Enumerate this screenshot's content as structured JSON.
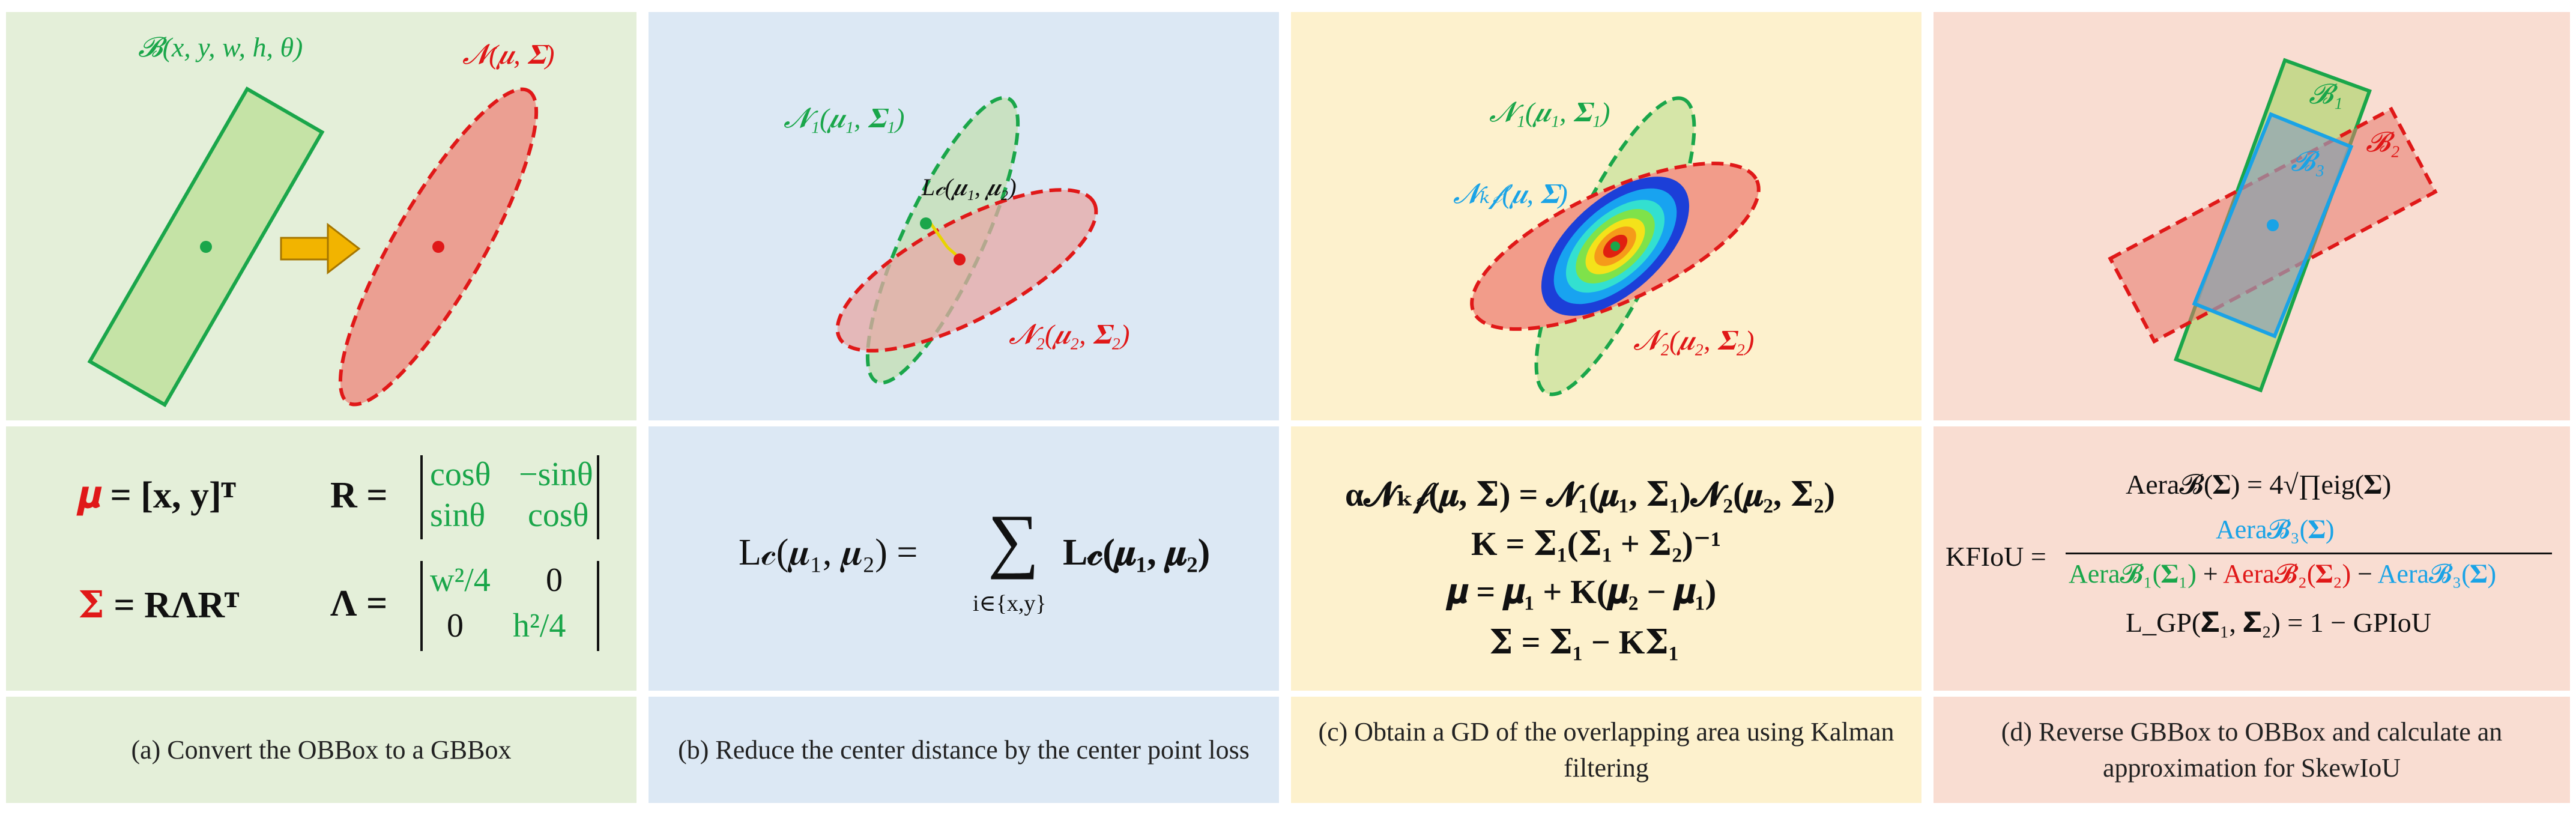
{
  "colors": {
    "green": "#1aa64a",
    "red": "#e01818",
    "cyan": "#1aa3e6",
    "panel_a": "#e4efd9",
    "panel_b": "#dce8f4",
    "panel_c": "#fdf1cd",
    "panel_d": "#f9ddd2"
  },
  "panel_a": {
    "label_obb": "𝓑(x, y, w, h, θ)",
    "label_gauss": "𝓝(𝝁, 𝚺)",
    "eq_mu_lhs": "𝝁",
    "eq_mu_rhs": "= [x, y]ᵀ",
    "eq_R_lhs": "R =",
    "eq_R_m11": "cosθ",
    "eq_R_m12": "−sinθ",
    "eq_R_m21": "sinθ",
    "eq_R_m22": "cosθ",
    "eq_sigma_lhs": "𝚺",
    "eq_sigma_rhs": "= RΛRᵀ",
    "eq_L_lhs": "Λ =",
    "eq_L_m11": "w²/4",
    "eq_L_m12": "0",
    "eq_L_m21": "0",
    "eq_L_m22": "h²/4",
    "caption": "(a) Convert the OBBox to a GBBox"
  },
  "panel_b": {
    "label_n1": "𝓝₁(𝝁₁, 𝚺₁)",
    "label_n2": "𝓝₂(𝝁₂, 𝚺₂)",
    "label_lc": "L𝒸(𝝁₁, 𝝁₂)",
    "eq_lhs": "L𝒸(𝝁₁, 𝝁₂) =",
    "eq_sum": "∑",
    "eq_sum_sub": "i∈{x,y}",
    "eq_rhs": "L𝒸(𝝁₁, 𝝁₂)",
    "caption": "(b) Reduce the center distance by the center point loss"
  },
  "panel_c": {
    "label_n1": "𝓝₁(𝝁₁, 𝚺₁)",
    "label_nkf": "𝓝ₖ𝒻(𝝁, 𝚺)",
    "label_n2": "𝓝₂(𝝁₂, 𝚺₂)",
    "eq1": "α𝓝ₖ𝒻(𝝁, 𝚺) = 𝓝₁(𝝁₁, 𝚺₁)𝓝₂(𝝁₂, 𝚺₂)",
    "eq2": "K = 𝚺₁(𝚺₁ + 𝚺₂)⁻¹",
    "eq3": "𝝁 = 𝝁₁ + K(𝝁₂ − 𝝁₁)",
    "eq4": "𝚺 = 𝚺₁ − K𝚺₁",
    "caption": "(c) Obtain a GD of the overlapping area using Kalman filtering"
  },
  "panel_d": {
    "label_b1": "𝓑₁",
    "label_b2": "𝓑₂",
    "label_b3": "𝓑₃",
    "eq1": "Aera𝓑(𝚺) = 4√∏eig(𝚺)",
    "eq2_lhs": "KFIoU =",
    "eq2_num": "Aera𝓑₃(𝚺)",
    "eq2_den1": "Aera𝓑₁(𝚺₁)",
    "eq2_den2": "Aera𝓑₂(𝚺₂)",
    "eq2_den3": "Aera𝓑₃(𝚺)",
    "eq3": "L_GP(𝚺₁, 𝚺₂) = 1 − GPIoU",
    "caption": "(d) Reverse  GBBox to OBBox and calculate an approximation for SkewIoU"
  }
}
